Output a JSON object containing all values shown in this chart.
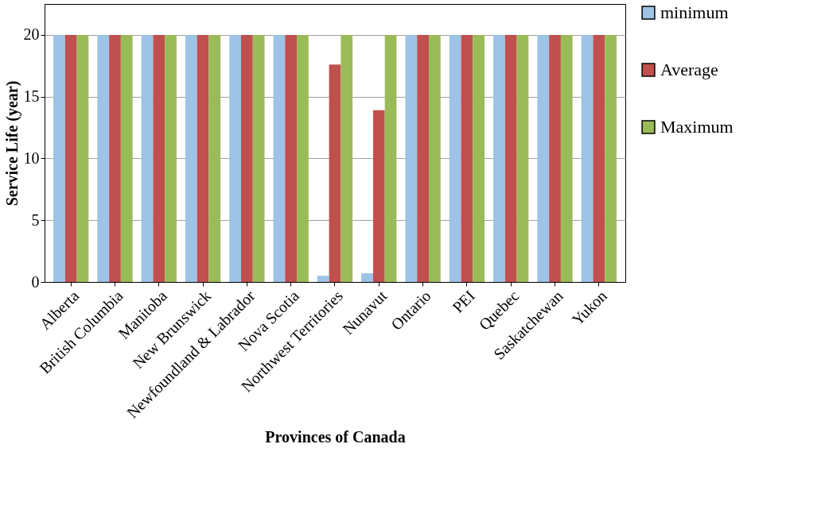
{
  "chart_data": {
    "type": "bar",
    "xlabel": "Provinces of Canada",
    "ylabel": "Service Life (year)",
    "categories": [
      "Alberta",
      "British Columbia",
      "Manitoba",
      "New Brunswick",
      "Newfoundland & Labrador",
      "Nova Scotia",
      "Northwest Territories",
      "Nunavut",
      "Ontario",
      "PEI",
      "Quebec",
      "Saskatchewan",
      "Yukon"
    ],
    "series": [
      {
        "name": "minimum",
        "color": "#9dc3e6",
        "values": [
          20,
          20,
          20,
          20,
          20,
          20,
          0.5,
          0.7,
          20,
          20,
          20,
          20,
          20
        ]
      },
      {
        "name": "Average",
        "color": "#c0504d",
        "values": [
          20,
          20,
          20,
          20,
          20,
          20,
          17.6,
          13.9,
          20,
          20,
          20,
          20,
          20
        ]
      },
      {
        "name": "Maximum",
        "color": "#9bbb59",
        "values": [
          20,
          20,
          20,
          20,
          20,
          20,
          20,
          20,
          20,
          20,
          20,
          20,
          20
        ]
      }
    ],
    "ylim": [
      0,
      22.5
    ],
    "yticks": [
      0,
      5,
      10,
      15,
      20
    ],
    "grid": "y",
    "legend": "right"
  }
}
